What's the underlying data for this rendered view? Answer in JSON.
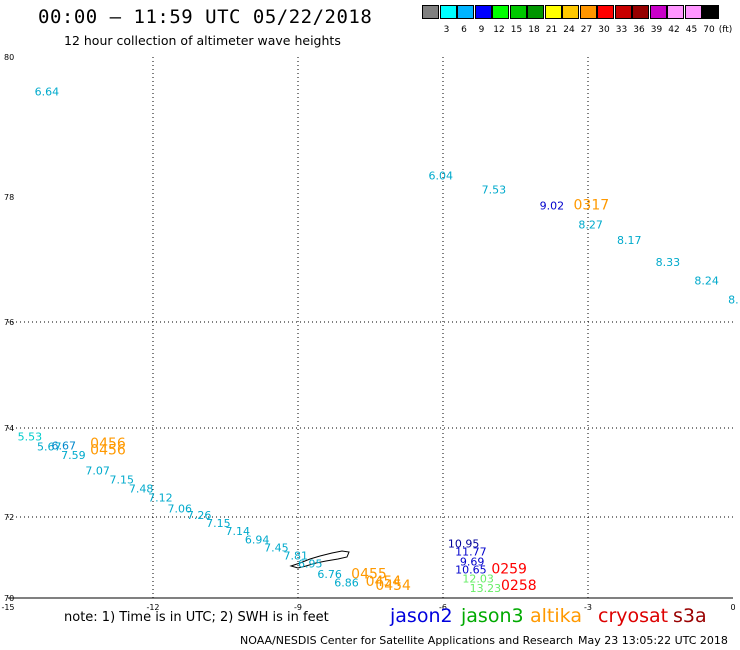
{
  "title": "00:00 – 11:59 UTC 05/22/2018",
  "subtitle": "12 hour collection of altimeter wave heights",
  "color_scale": {
    "labels": [
      "3",
      "6",
      "9",
      "12",
      "15",
      "18",
      "21",
      "24",
      "27",
      "30",
      "33",
      "36",
      "39",
      "42",
      "45",
      "70"
    ],
    "unit": "(ft)",
    "colors": [
      "#808080",
      "#00ffff",
      "#00b4ff",
      "#0000ff",
      "#00ff00",
      "#00c800",
      "#009600",
      "#ffff00",
      "#ffc800",
      "#ff9600",
      "#ff0000",
      "#c80000",
      "#960000",
      "#c800c8",
      "#ff96ff",
      "#ff96ff",
      "#000000"
    ]
  },
  "axes": {
    "x_ticks": [
      "-15",
      "-12",
      "-9",
      "-6",
      "-3",
      "0"
    ],
    "y_ticks": [
      "70",
      "72",
      "74",
      "76",
      "78",
      "80"
    ]
  },
  "note": "note: 1) Time is in UTC; 2) SWH is in feet",
  "legend": [
    {
      "name": "jason2",
      "color": "#0000dd"
    },
    {
      "name": "jason3",
      "color": "#00aa00"
    },
    {
      "name": "altika",
      "color": "#ff9900"
    },
    {
      "name": "cryosat",
      "color": "#dd0000"
    },
    {
      "name": "s3a",
      "color": "#990000"
    }
  ],
  "credit": "NOAA/NESDIS Center for Satellite Applications and Research",
  "timestamp": "May 23 13:05:22 UTC 2018",
  "points": [
    {
      "lon": -14.45,
      "lat": 79.45,
      "text": "6.64",
      "color": "#00aacc",
      "size": 11
    },
    {
      "lon": -6.3,
      "lat": 78.25,
      "text": "6.04",
      "color": "#00aacc",
      "size": 11
    },
    {
      "lon": -5.2,
      "lat": 78.05,
      "text": "7.53",
      "color": "#00aacc",
      "size": 11
    },
    {
      "lon": -4.0,
      "lat": 77.8,
      "text": "9.02",
      "color": "#0000cc",
      "size": 11
    },
    {
      "lon": -3.3,
      "lat": 77.8,
      "text": "0317",
      "color": "#ff9900",
      "size": 14
    },
    {
      "lon": -3.2,
      "lat": 77.5,
      "text": "8.27",
      "color": "#00aacc",
      "size": 11
    },
    {
      "lon": -2.4,
      "lat": 77.25,
      "text": "8.17",
      "color": "#00aacc",
      "size": 11
    },
    {
      "lon": -1.6,
      "lat": 76.9,
      "text": "8.33",
      "color": "#00aacc",
      "size": 11
    },
    {
      "lon": -0.8,
      "lat": 76.6,
      "text": "8.24",
      "color": "#00aacc",
      "size": 11
    },
    {
      "lon": -0.1,
      "lat": 76.3,
      "text": "8.",
      "color": "#00aacc",
      "size": 11
    },
    {
      "lon": -14.8,
      "lat": 73.72,
      "text": "5.53",
      "color": "#00cccc",
      "size": 11
    },
    {
      "lon": -14.4,
      "lat": 73.5,
      "text": "5.67",
      "color": "#00aacc",
      "size": 11
    },
    {
      "lon": -14.1,
      "lat": 73.52,
      "text": "6.67",
      "color": "#0088cc",
      "size": 11
    },
    {
      "lon": -13.3,
      "lat": 73.55,
      "text": "0456",
      "color": "#ff9900",
      "size": 14
    },
    {
      "lon": -13.3,
      "lat": 73.4,
      "text": "0456",
      "color": "#ff9900",
      "size": 14
    },
    {
      "lon": -13.9,
      "lat": 73.3,
      "text": "7.59",
      "color": "#00aacc",
      "size": 11
    },
    {
      "lon": -13.4,
      "lat": 72.95,
      "text": "7.07",
      "color": "#00aacc",
      "size": 11
    },
    {
      "lon": -12.9,
      "lat": 72.75,
      "text": "7.15",
      "color": "#00aacc",
      "size": 11
    },
    {
      "lon": -12.5,
      "lat": 72.55,
      "text": "7.48",
      "color": "#00aacc",
      "size": 11
    },
    {
      "lon": -12.1,
      "lat": 72.35,
      "text": "7.12",
      "color": "#00aacc",
      "size": 11
    },
    {
      "lon": -11.7,
      "lat": 72.1,
      "text": "7.06",
      "color": "#00aacc",
      "size": 11
    },
    {
      "lon": -11.3,
      "lat": 71.95,
      "text": "7.26",
      "color": "#00aacc",
      "size": 11
    },
    {
      "lon": -10.9,
      "lat": 71.75,
      "text": "7.15",
      "color": "#00aacc",
      "size": 11
    },
    {
      "lon": -10.5,
      "lat": 71.55,
      "text": "7.14",
      "color": "#00aacc",
      "size": 11
    },
    {
      "lon": -10.1,
      "lat": 71.35,
      "text": "6.94",
      "color": "#00aacc",
      "size": 11
    },
    {
      "lon": -9.7,
      "lat": 71.15,
      "text": "7.45",
      "color": "#00aacc",
      "size": 11
    },
    {
      "lon": -9.3,
      "lat": 70.95,
      "text": "7.81",
      "color": "#00aacc",
      "size": 11
    },
    {
      "lon": -9.0,
      "lat": 70.75,
      "text": "6.95",
      "color": "#00aacc",
      "size": 11
    },
    {
      "lon": -8.6,
      "lat": 70.5,
      "text": "6.76",
      "color": "#00aacc",
      "size": 11
    },
    {
      "lon": -8.25,
      "lat": 70.28,
      "text": "6.86",
      "color": "#00aacc",
      "size": 11
    },
    {
      "lon": -7.9,
      "lat": 70.48,
      "text": "0455",
      "color": "#ff9900",
      "size": 14
    },
    {
      "lon": -7.6,
      "lat": 70.3,
      "text": "0454",
      "color": "#ff9900",
      "size": 14
    },
    {
      "lon": -7.4,
      "lat": 70.2,
      "text": "0454",
      "color": "#ff9900",
      "size": 14
    },
    {
      "lon": -5.9,
      "lat": 71.25,
      "text": "10.95",
      "color": "#000099",
      "size": 11
    },
    {
      "lon": -5.75,
      "lat": 71.05,
      "text": "11.77",
      "color": "#0000cc",
      "size": 11
    },
    {
      "lon": -5.65,
      "lat": 70.8,
      "text": "9.69",
      "color": "#0000cc",
      "size": 11
    },
    {
      "lon": -5.75,
      "lat": 70.6,
      "text": "10.65",
      "color": "#0000cc",
      "size": 11
    },
    {
      "lon": -5.0,
      "lat": 70.6,
      "text": "0259",
      "color": "#ff0000",
      "size": 14
    },
    {
      "lon": -5.6,
      "lat": 70.38,
      "text": "12.03",
      "color": "#66ee66",
      "size": 11
    },
    {
      "lon": -5.45,
      "lat": 70.15,
      "text": "13.23",
      "color": "#66ee66",
      "size": 11
    },
    {
      "lon": -4.8,
      "lat": 70.2,
      "text": "0258",
      "color": "#ff0000",
      "size": 14
    }
  ]
}
